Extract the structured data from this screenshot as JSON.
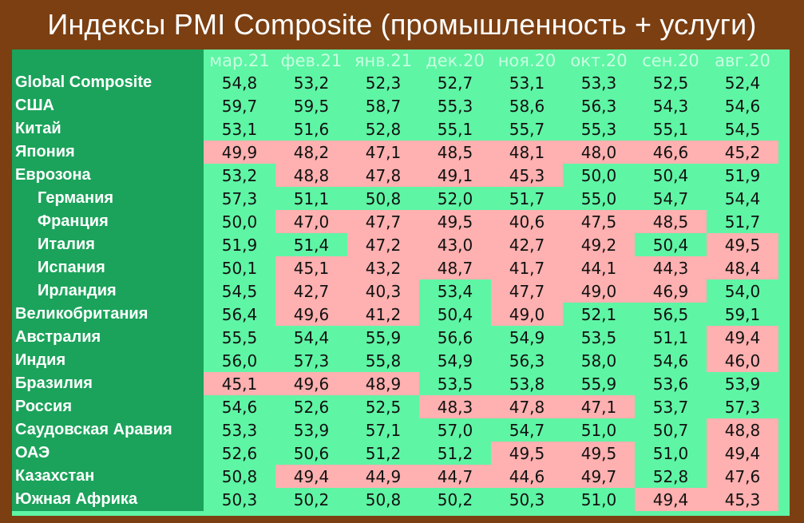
{
  "title": "Индексы PMI Composite (промышленность + услуги)",
  "chart_data": {
    "type": "table",
    "title": "Индексы PMI Composite (промышленность + услуги)",
    "columns": [
      "мар.21",
      "фев.21",
      "янв.21",
      "дек.20",
      "ноя.20",
      "окт.20",
      "сен.20",
      "авг.20"
    ],
    "threshold": 50,
    "colors": {
      "below_50": "#ffb0b0",
      "above_50": "#5ef5a5",
      "label_bg": "#1ba35b",
      "frame": "#7b3f12"
    },
    "rows": [
      {
        "name": "Global Composite",
        "indent": false,
        "values": [
          "54,8",
          "53,2",
          "52,3",
          "52,7",
          "53,1",
          "53,3",
          "52,5",
          "52,4"
        ]
      },
      {
        "name": "США",
        "indent": false,
        "values": [
          "59,7",
          "59,5",
          "58,7",
          "55,3",
          "58,6",
          "56,3",
          "54,3",
          "54,6"
        ]
      },
      {
        "name": "Китай",
        "indent": false,
        "values": [
          "53,1",
          "51,6",
          "52,8",
          "55,1",
          "55,7",
          "55,3",
          "55,1",
          "54,5"
        ]
      },
      {
        "name": "Япония",
        "indent": false,
        "values": [
          "49,9",
          "48,2",
          "47,1",
          "48,5",
          "48,1",
          "48,0",
          "46,6",
          "45,2"
        ]
      },
      {
        "name": "Еврозона",
        "indent": false,
        "values": [
          "53,2",
          "48,8",
          "47,8",
          "49,1",
          "45,3",
          "50,0",
          "50,4",
          "51,9"
        ]
      },
      {
        "name": "Германия",
        "indent": true,
        "values": [
          "57,3",
          "51,1",
          "50,8",
          "52,0",
          "51,7",
          "55,0",
          "54,7",
          "54,4"
        ]
      },
      {
        "name": "Франция",
        "indent": true,
        "values": [
          "50,0",
          "47,0",
          "47,7",
          "49,5",
          "40,6",
          "47,5",
          "48,5",
          "51,7"
        ]
      },
      {
        "name": "Италия",
        "indent": true,
        "values": [
          "51,9",
          "51,4",
          "47,2",
          "43,0",
          "42,7",
          "49,2",
          "50,4",
          "49,5"
        ]
      },
      {
        "name": "Испания",
        "indent": true,
        "values": [
          "50,1",
          "45,1",
          "43,2",
          "48,7",
          "41,7",
          "44,1",
          "44,3",
          "48,4"
        ]
      },
      {
        "name": "Ирландия",
        "indent": true,
        "values": [
          "54,5",
          "42,7",
          "40,3",
          "53,4",
          "47,7",
          "49,0",
          "46,9",
          "54,0"
        ]
      },
      {
        "name": "Великобритания",
        "indent": false,
        "values": [
          "56,4",
          "49,6",
          "41,2",
          "50,4",
          "49,0",
          "52,1",
          "56,5",
          "59,1"
        ]
      },
      {
        "name": "Австралия",
        "indent": false,
        "values": [
          "55,5",
          "54,4",
          "55,9",
          "56,6",
          "54,9",
          "53,5",
          "51,1",
          "49,4"
        ]
      },
      {
        "name": "Индия",
        "indent": false,
        "values": [
          "56,0",
          "57,3",
          "55,8",
          "54,9",
          "56,3",
          "58,0",
          "54,6",
          "46,0"
        ]
      },
      {
        "name": "Бразилия",
        "indent": false,
        "values": [
          "45,1",
          "49,6",
          "48,9",
          "53,5",
          "53,8",
          "55,9",
          "53,6",
          "53,9"
        ]
      },
      {
        "name": "Россия",
        "indent": false,
        "values": [
          "54,6",
          "52,6",
          "52,5",
          "48,3",
          "47,8",
          "47,1",
          "53,7",
          "57,3"
        ]
      },
      {
        "name": "Саудовская Аравия",
        "indent": false,
        "values": [
          "53,3",
          "53,9",
          "57,1",
          "57,0",
          "54,7",
          "51,0",
          "50,7",
          "48,8"
        ]
      },
      {
        "name": "ОАЭ",
        "indent": false,
        "values": [
          "52,6",
          "50,6",
          "51,2",
          "51,2",
          "49,5",
          "49,5",
          "51,0",
          "49,4"
        ]
      },
      {
        "name": "Казахстан",
        "indent": false,
        "values": [
          "50,8",
          "49,4",
          "44,9",
          "44,7",
          "44,6",
          "49,7",
          "52,8",
          "47,6"
        ]
      },
      {
        "name": "Южная Африка",
        "indent": false,
        "values": [
          "50,3",
          "50,2",
          "50,8",
          "50,2",
          "50,3",
          "51,0",
          "49,4",
          "45,3"
        ]
      }
    ]
  }
}
